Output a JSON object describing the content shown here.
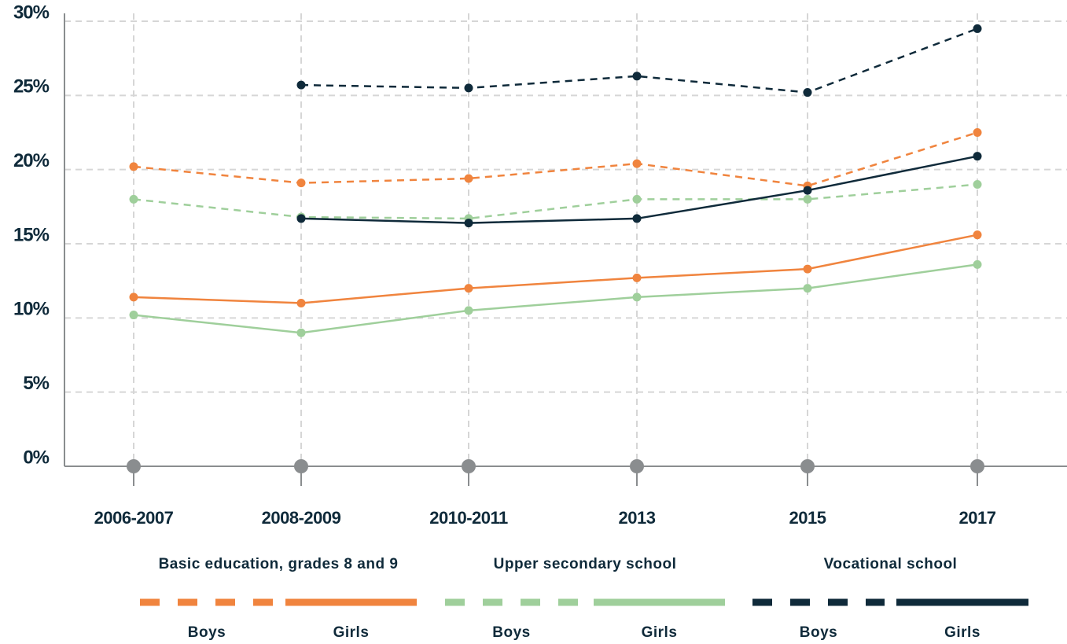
{
  "chart_data": {
    "type": "line",
    "categories": [
      "2006-2007",
      "2008-2009",
      "2010-2011",
      "2013",
      "2015",
      "2017"
    ],
    "legend_groups": [
      "Basic education, grades 8 and 9",
      "Upper secondary school",
      "Vocational school"
    ],
    "series": [
      {
        "name": "Boys",
        "color": "#f0843e",
        "style": "dashed",
        "values": [
          20.2,
          19.1,
          19.4,
          20.4,
          18.9,
          22.5
        ]
      },
      {
        "name": "Girls",
        "color": "#f0843e",
        "style": "solid",
        "values": [
          11.4,
          11.0,
          12.0,
          12.7,
          13.3,
          15.6
        ]
      },
      {
        "name": "Boys",
        "color": "#9fcf9b",
        "style": "dashed",
        "values": [
          18.0,
          16.8,
          16.7,
          18.0,
          18.0,
          19.0
        ]
      },
      {
        "name": "Girls",
        "color": "#9fcf9b",
        "style": "solid",
        "values": [
          10.2,
          9.0,
          10.5,
          11.4,
          12.0,
          13.6
        ]
      },
      {
        "name": "Boys",
        "color": "#0f2a3a",
        "style": "dashed",
        "values": [
          null,
          25.7,
          25.5,
          26.3,
          25.2,
          29.5
        ]
      },
      {
        "name": "Girls",
        "color": "#0f2a3a",
        "style": "solid",
        "values": [
          null,
          16.7,
          16.4,
          16.7,
          18.6,
          20.9
        ]
      }
    ],
    "ylim": [
      0,
      30
    ],
    "yticks": [
      {
        "value": 0,
        "label": "0%"
      },
      {
        "value": 5,
        "label": "5%"
      },
      {
        "value": 10,
        "label": "10%"
      },
      {
        "value": 15,
        "label": "15%"
      },
      {
        "value": 20,
        "label": "20%"
      },
      {
        "value": 25,
        "label": "25%"
      },
      {
        "value": 30,
        "label": "30%"
      }
    ],
    "grid": true
  }
}
